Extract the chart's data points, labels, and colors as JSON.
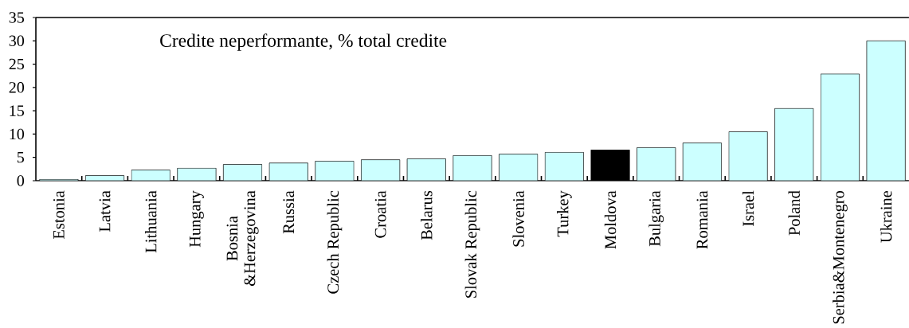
{
  "chart_data": {
    "type": "bar",
    "title": "Credite neperformante, % total credite",
    "categories": [
      "Estonia",
      "Latvia",
      "Lithuania",
      "Hungary",
      "Bosnia &Herzegovina",
      "Russia",
      "Czech Republic",
      "Croatia",
      "Belarus",
      "Slovak Republic",
      "Slovenia",
      "Turkey",
      "Moldova",
      "Bulgaria",
      "Romania",
      "Israel",
      "Poland",
      "Serbia&Montenegro",
      "Ukraine"
    ],
    "values": [
      0.3,
      1.1,
      2.3,
      2.7,
      3.5,
      3.8,
      4.2,
      4.5,
      4.7,
      5.4,
      5.7,
      6.1,
      6.6,
      7.1,
      8.1,
      10.5,
      15.5,
      22.9,
      30.0
    ],
    "colors": [
      "#ccffff",
      "#ccffff",
      "#ccffff",
      "#ccffff",
      "#ccffff",
      "#ccffff",
      "#ccffff",
      "#ccffff",
      "#ccffff",
      "#ccffff",
      "#ccffff",
      "#ccffff",
      "#000000",
      "#ccffff",
      "#ccffff",
      "#ccffff",
      "#ccffff",
      "#ccffff",
      "#ccffff"
    ],
    "ylim": [
      0,
      35
    ],
    "yticks": [
      0,
      5,
      10,
      15,
      20,
      25,
      30,
      35
    ]
  }
}
